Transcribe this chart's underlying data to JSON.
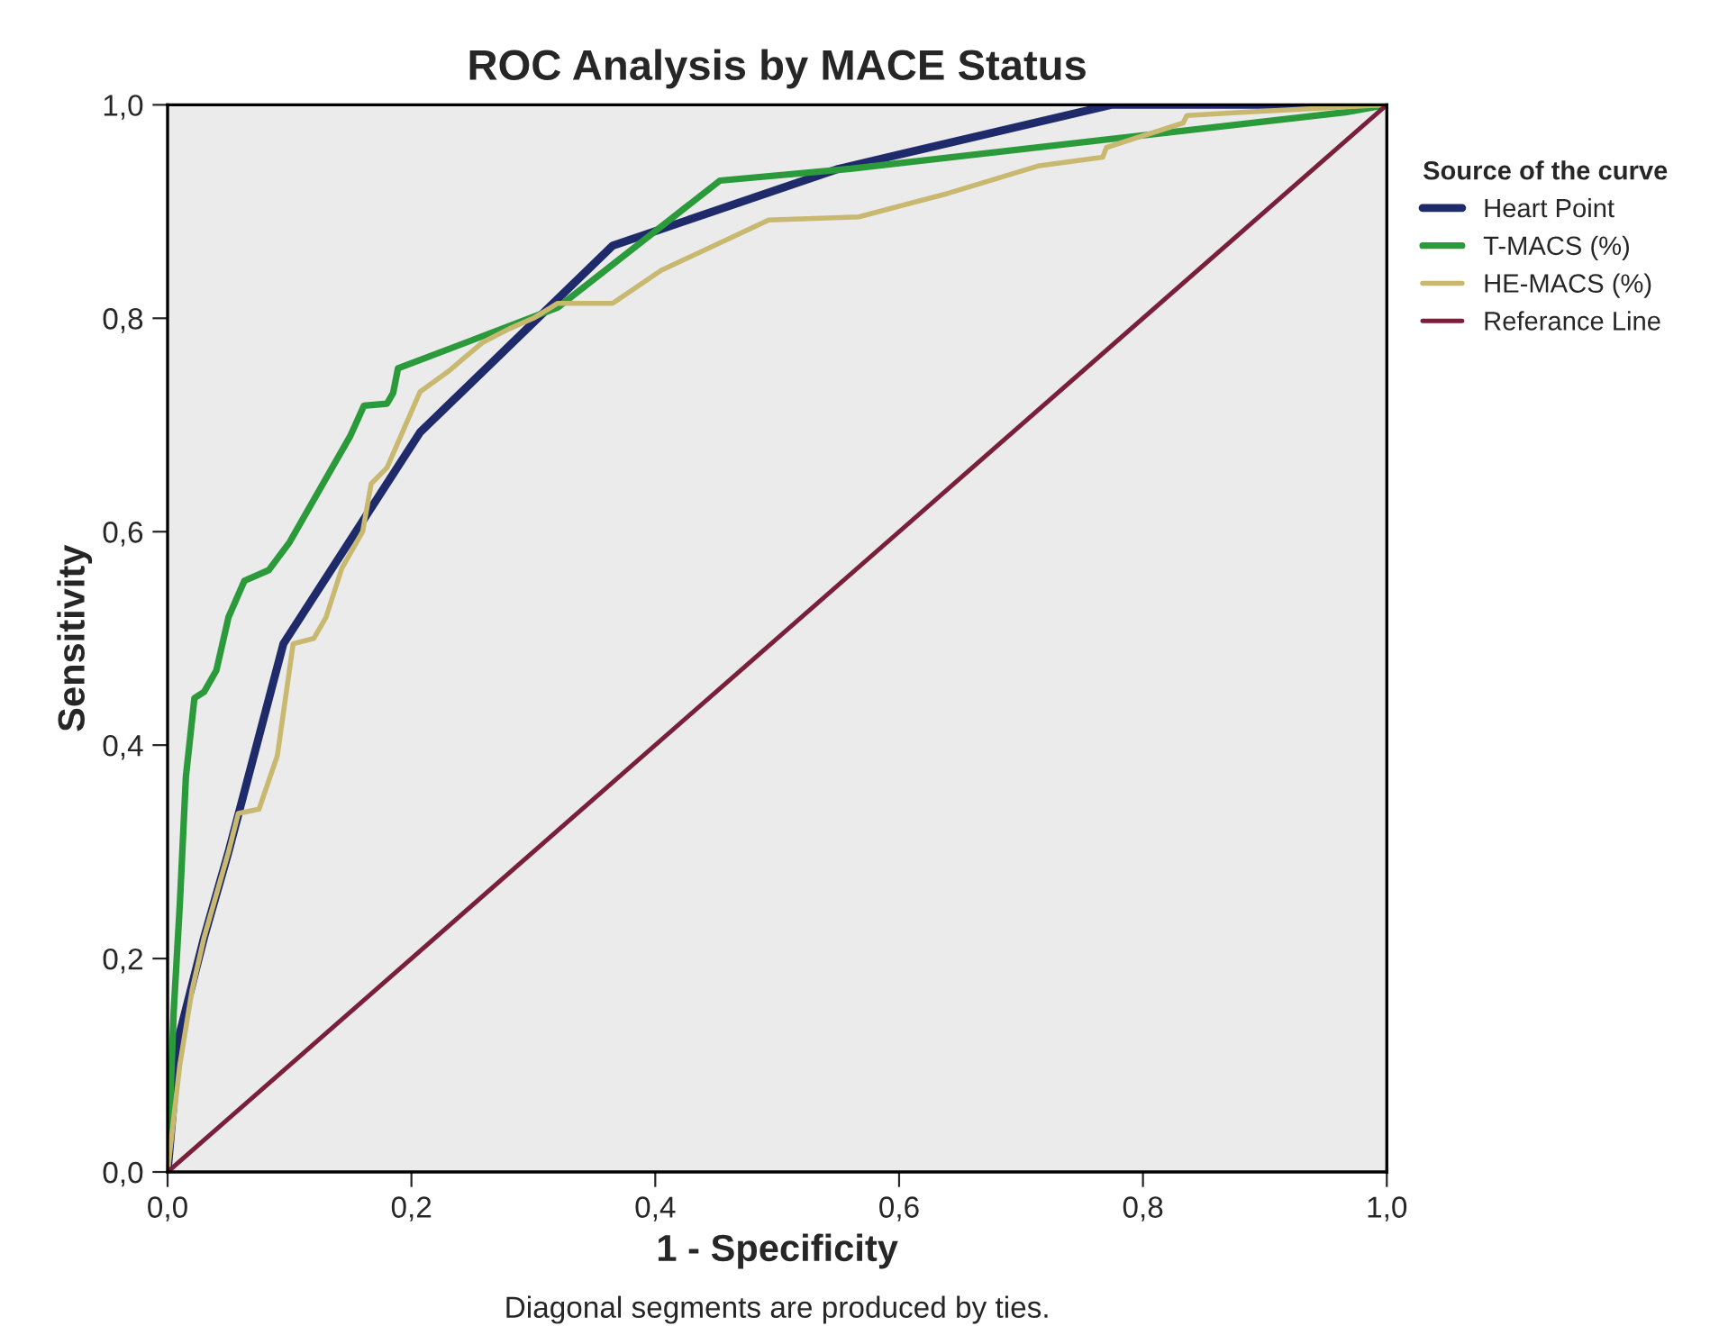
{
  "chart_data": {
    "type": "line",
    "title": "ROC Analysis by MACE Status",
    "xlabel": "1 - Specificity",
    "ylabel": "Sensitivity",
    "annotations": [
      "Diagonal segments are produced by ties."
    ],
    "legend_title": "Source of the curve",
    "legend": "right",
    "grid": false,
    "marker": "none",
    "line_style": "solid",
    "xlim": [
      0,
      1
    ],
    "ylim": [
      0,
      1
    ],
    "xticks": [
      {
        "value": 0,
        "label": "0,0"
      },
      {
        "value": 0.2,
        "label": "0,2"
      },
      {
        "value": 0.4,
        "label": "0,4"
      },
      {
        "value": 0.6,
        "label": "0,6"
      },
      {
        "value": 0.8,
        "label": "0,8"
      },
      {
        "value": 1,
        "label": "1,0"
      }
    ],
    "yticks": [
      {
        "value": 0,
        "label": "0,0"
      },
      {
        "value": 0.2,
        "label": "0,2"
      },
      {
        "value": 0.4,
        "label": "0,4"
      },
      {
        "value": 0.6,
        "label": "0,6"
      },
      {
        "value": 0.8,
        "label": "0,8"
      },
      {
        "value": 1,
        "label": "1,0"
      }
    ],
    "series": [
      {
        "name": "Heart Point",
        "color": "#1f2a6b",
        "x": [
          0,
          0.01,
          0.03,
          0.05,
          0.095,
          0.207,
          0.365,
          0.55,
          0.774,
          1
        ],
        "values": [
          0,
          0.13,
          0.22,
          0.3,
          0.495,
          0.693,
          0.868,
          0.94,
          1,
          1
        ]
      },
      {
        "name": "T-MACS (%)",
        "color": "#2a9a3a",
        "x": [
          0,
          0.005,
          0.01,
          0.015,
          0.022,
          0.03,
          0.04,
          0.05,
          0.063,
          0.083,
          0.1,
          0.15,
          0.161,
          0.18,
          0.185,
          0.189,
          0.32,
          0.453,
          0.56,
          0.966,
          1
        ],
        "values": [
          0,
          0.15,
          0.25,
          0.37,
          0.444,
          0.45,
          0.47,
          0.52,
          0.554,
          0.564,
          0.59,
          0.69,
          0.718,
          0.72,
          0.73,
          0.753,
          0.81,
          0.929,
          0.94,
          0.993,
          1
        ]
      },
      {
        "name": "HE-MACS (%)",
        "color": "#c8b870",
        "x": [
          0,
          0.01,
          0.02,
          0.03,
          0.04,
          0.05,
          0.058,
          0.075,
          0.09,
          0.103,
          0.12,
          0.13,
          0.143,
          0.16,
          0.167,
          0.18,
          0.207,
          0.23,
          0.258,
          0.28,
          0.3,
          0.32,
          0.365,
          0.405,
          0.493,
          0.567,
          0.64,
          0.715,
          0.767,
          0.77,
          0.833,
          0.836,
          0.88,
          1
        ],
        "values": [
          0,
          0.1,
          0.17,
          0.22,
          0.26,
          0.3,
          0.336,
          0.34,
          0.39,
          0.495,
          0.5,
          0.52,
          0.566,
          0.6,
          0.645,
          0.66,
          0.731,
          0.75,
          0.777,
          0.79,
          0.8,
          0.814,
          0.814,
          0.845,
          0.892,
          0.895,
          0.917,
          0.943,
          0.951,
          0.96,
          0.983,
          0.99,
          0.993,
          1
        ]
      },
      {
        "name": "Referance Line",
        "color": "#7a1f3a",
        "x": [
          0,
          1
        ],
        "values": [
          0,
          1
        ]
      }
    ]
  }
}
